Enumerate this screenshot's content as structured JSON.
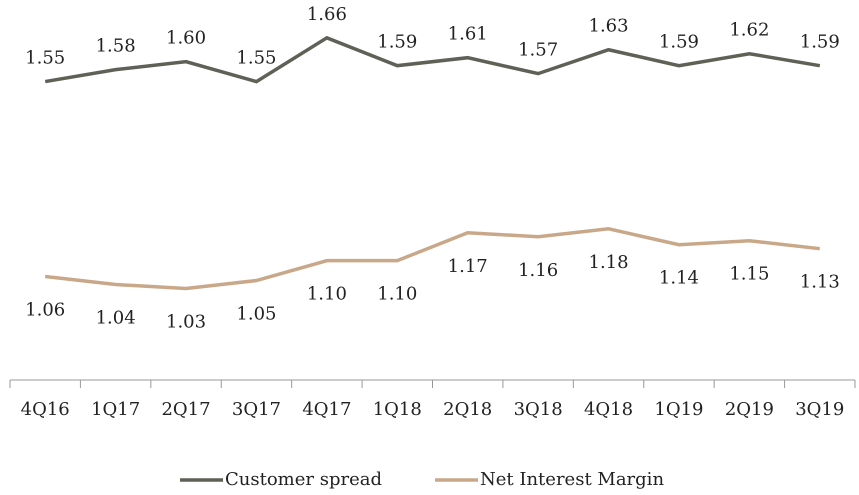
{
  "chart_data": {
    "type": "line",
    "categories": [
      "4Q16",
      "1Q17",
      "2Q17",
      "3Q17",
      "4Q17",
      "1Q18",
      "2Q18",
      "3Q18",
      "4Q18",
      "1Q19",
      "2Q19",
      "3Q19"
    ],
    "series": [
      {
        "name": "Customer spread",
        "color": "#5f6157",
        "values": [
          1.55,
          1.58,
          1.6,
          1.55,
          1.66,
          1.59,
          1.61,
          1.57,
          1.63,
          1.59,
          1.62,
          1.59
        ],
        "value_labels": [
          "1.55",
          "1.58",
          "1.60",
          "1.55",
          "1.66",
          "1.59",
          "1.61",
          "1.57",
          "1.63",
          "1.59",
          "1.62",
          "1.59"
        ]
      },
      {
        "name": "Net Interest Margin",
        "color": "#c9a88a",
        "values": [
          1.06,
          1.04,
          1.03,
          1.05,
          1.1,
          1.1,
          1.17,
          1.16,
          1.18,
          1.14,
          1.15,
          1.13
        ],
        "value_labels": [
          "1.06",
          "1.04",
          "1.03",
          "1.05",
          "1.10",
          "1.10",
          "1.17",
          "1.16",
          "1.18",
          "1.14",
          "1.15",
          "1.13"
        ]
      }
    ],
    "ylim": [
      0.8,
      1.75
    ],
    "legend": "bottom"
  }
}
